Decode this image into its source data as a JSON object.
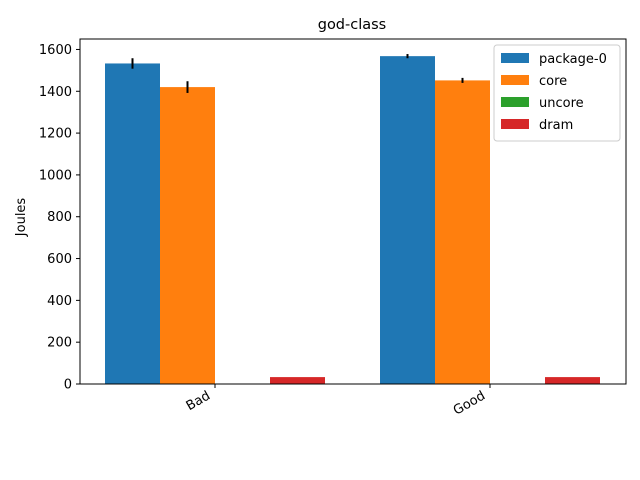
{
  "chart_data": {
    "type": "bar",
    "title": "god-class",
    "xlabel": "",
    "ylabel": "Joules",
    "categories": [
      "Bad",
      "Good"
    ],
    "ylim": [
      0,
      1650
    ],
    "yticks": [
      0,
      200,
      400,
      600,
      800,
      1000,
      1200,
      1400,
      1600
    ],
    "grid": false,
    "legend_position": "top-right",
    "series": [
      {
        "name": "package-0",
        "color": "#1f77b4",
        "values": [
          1533,
          1568
        ],
        "errors": [
          25,
          10
        ]
      },
      {
        "name": "core",
        "color": "#ff7f0e",
        "values": [
          1420,
          1452
        ],
        "errors": [
          28,
          12
        ]
      },
      {
        "name": "uncore",
        "color": "#2ca02c",
        "values": [
          0,
          0
        ],
        "errors": [
          0,
          0
        ]
      },
      {
        "name": "dram",
        "color": "#d62728",
        "values": [
          33,
          33
        ],
        "errors": [
          0,
          0
        ]
      }
    ]
  }
}
